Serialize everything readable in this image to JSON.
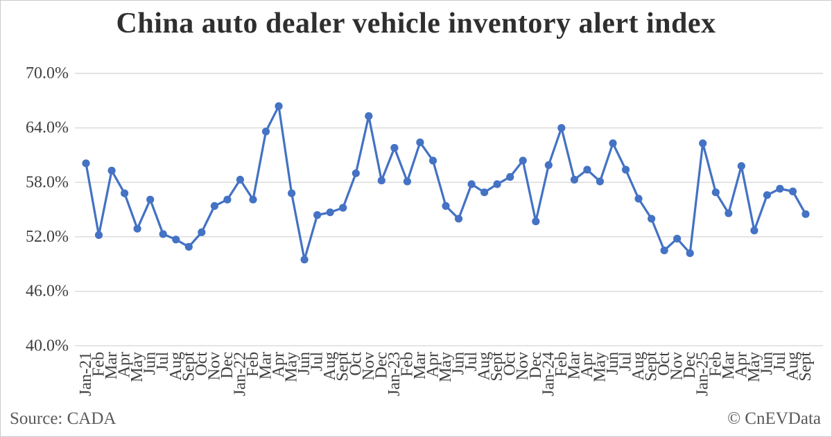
{
  "footer": {
    "source": "Source: CADA",
    "credit": "© CnEVData"
  },
  "colors": {
    "line": "#4472C4",
    "grid": "#D9D9D9",
    "axis_text": "#3F3F3F",
    "title_text": "#2F2F2F",
    "footer_text": "#595959",
    "border": "#C9C9C9",
    "background": "#FFFFFF"
  },
  "chart_data": {
    "type": "line",
    "title": "China auto dealer vehicle inventory alert index",
    "xlabel": "",
    "ylabel": "",
    "ylim": [
      40,
      70
    ],
    "grid": true,
    "legend": false,
    "marker": "circle",
    "yticks": [
      {
        "label": "70.0%",
        "value": 70
      },
      {
        "label": "64.0%",
        "value": 64
      },
      {
        "label": "58.0%",
        "value": 58
      },
      {
        "label": "52.0%",
        "value": 52
      },
      {
        "label": "46.0%",
        "value": 46
      },
      {
        "label": "40.0%",
        "value": 40
      }
    ],
    "x": [
      "Jan-21",
      "Feb",
      "Mar",
      "Apr",
      "May",
      "Jun",
      "Jul",
      "Aug",
      "Sept",
      "Oct",
      "Nov",
      "Dec",
      "Jan-22",
      "Feb",
      "Mar",
      "Apr",
      "May",
      "Jun",
      "Jul",
      "Aug",
      "Sept",
      "Oct",
      "Nov",
      "Dec",
      "Jan-23",
      "Feb",
      "Mar",
      "Apr",
      "May",
      "Jun",
      "Jul",
      "Aug",
      "Sept",
      "Oct",
      "Nov",
      "Dec",
      "Jan-24",
      "Feb",
      "Mar",
      "Apr",
      "May",
      "Jun",
      "Jul",
      "Aug",
      "Sept",
      "Oct",
      "Nov",
      "Dec",
      "Jan-25",
      "Feb",
      "Mar",
      "Apr",
      "May",
      "Jun",
      "Jul",
      "Aug",
      "Sept"
    ],
    "series": [
      {
        "name": "Vehicle inventory alert index (%)",
        "values": [
          60.1,
          52.2,
          59.3,
          56.8,
          52.9,
          56.1,
          52.3,
          51.7,
          50.9,
          52.5,
          55.4,
          56.1,
          58.3,
          56.1,
          63.6,
          66.4,
          56.8,
          49.5,
          54.4,
          54.7,
          55.2,
          59.0,
          65.3,
          58.2,
          61.8,
          58.1,
          62.4,
          60.4,
          55.4,
          54.0,
          57.8,
          56.9,
          57.8,
          58.6,
          60.4,
          53.7,
          59.9,
          64.0,
          58.3,
          59.4,
          58.1,
          62.3,
          59.4,
          56.2,
          54.0,
          50.5,
          51.8,
          50.2,
          62.3,
          56.9,
          54.6,
          59.8,
          52.7,
          56.6,
          57.3,
          57.0,
          54.5
        ]
      }
    ]
  }
}
